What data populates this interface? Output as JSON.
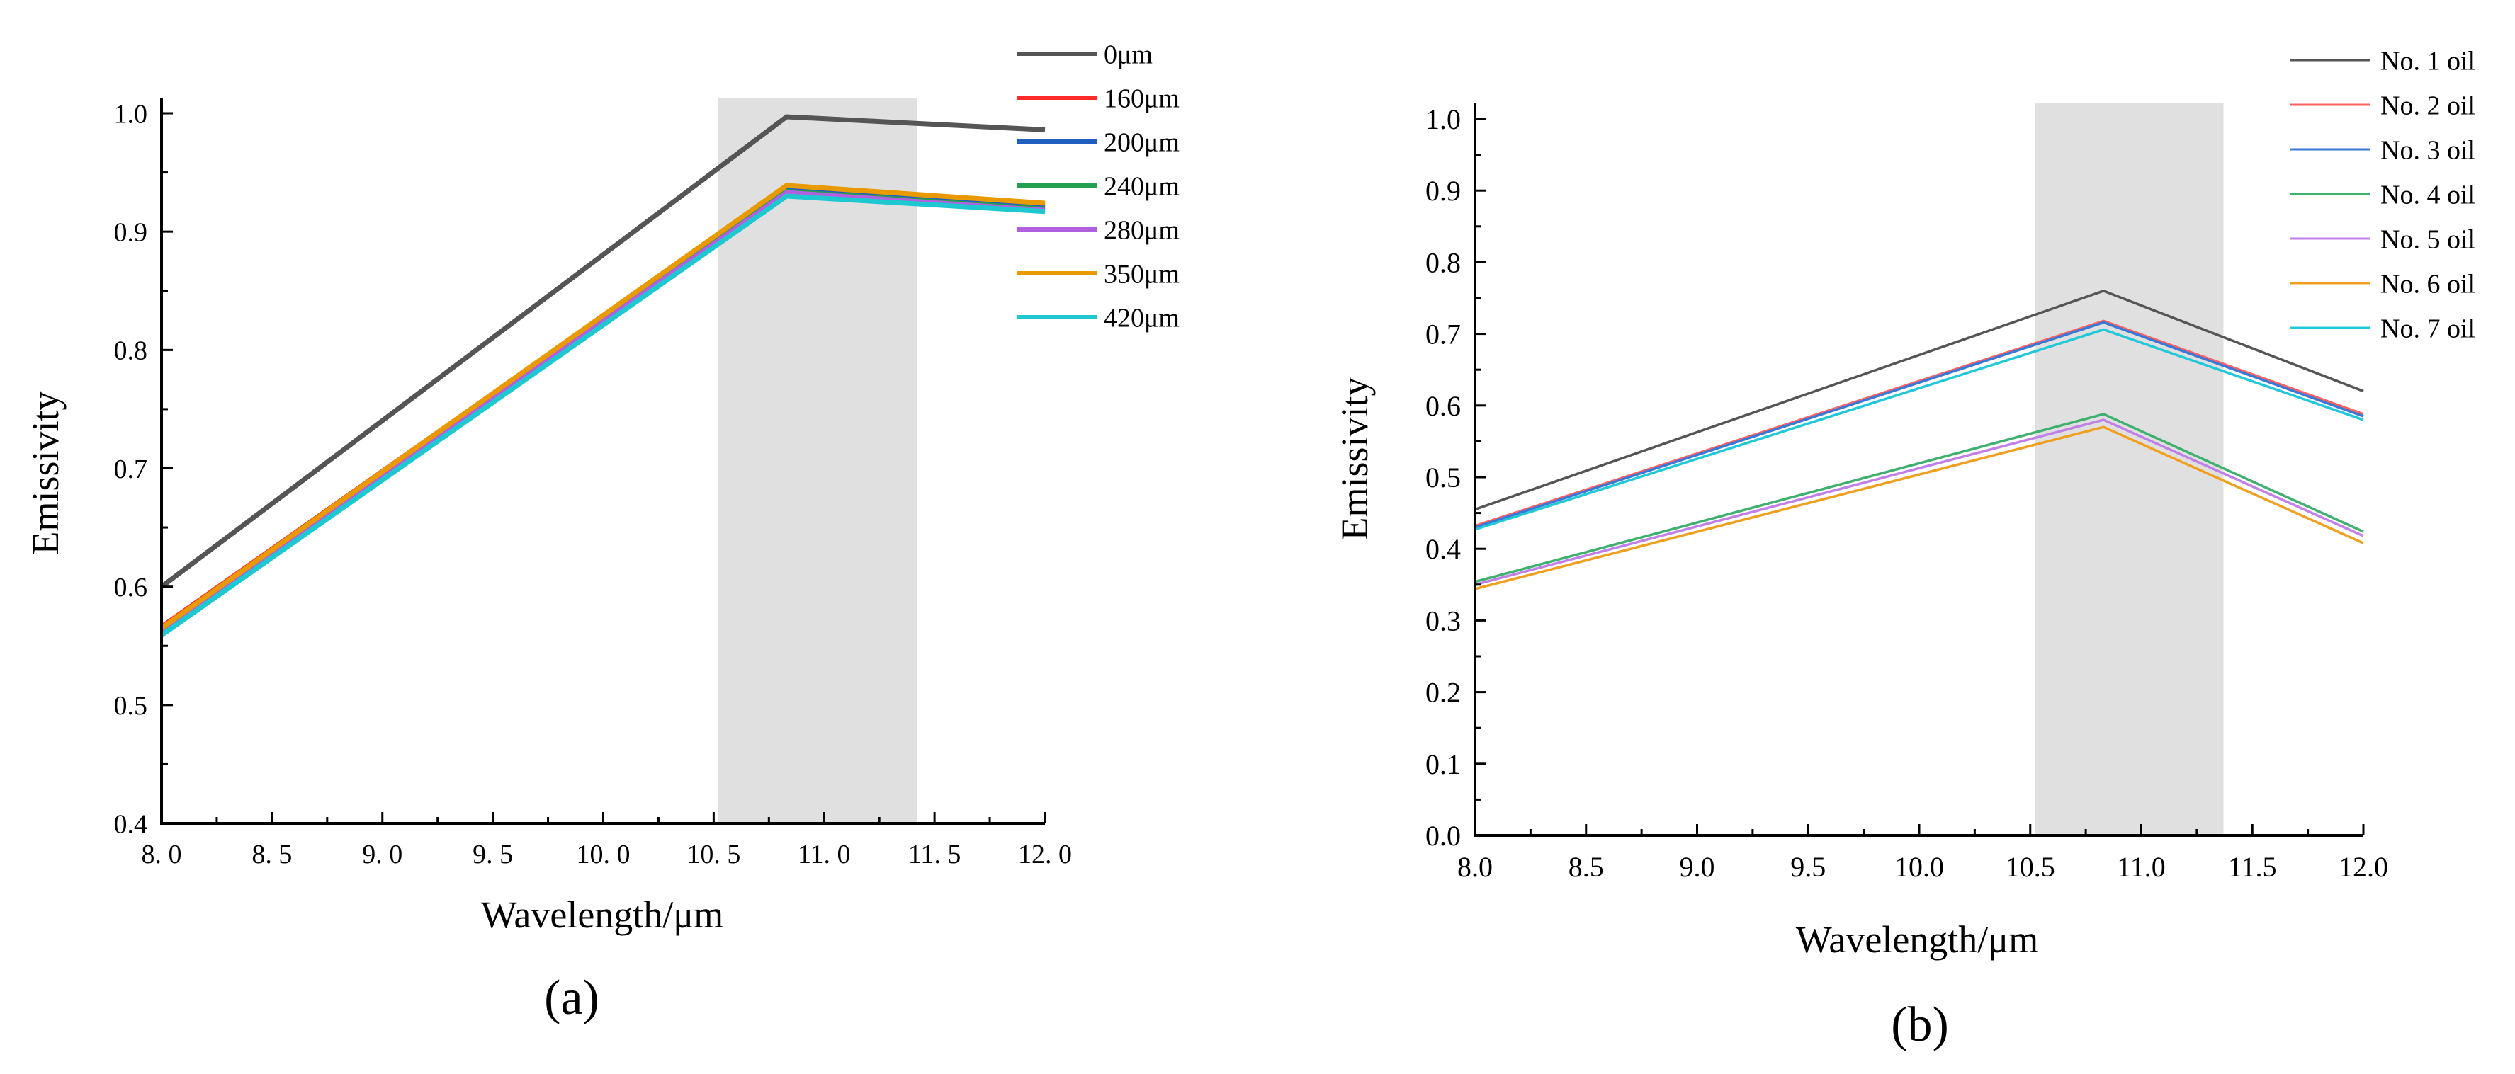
{
  "chart_data": [
    {
      "panel": "a",
      "type": "line",
      "caption": "(a)",
      "xlabel": "Wavelength/μm",
      "ylabel": "Emissivity",
      "xlim": [
        8.0,
        12.0
      ],
      "ylim": [
        0.4,
        1.0
      ],
      "x_ticks": [
        "8. 0",
        "8. 5",
        "9. 0",
        "9. 5",
        "10. 0",
        "10. 5",
        "11. 0",
        "11. 5",
        "12. 0"
      ],
      "x_tick_values": [
        8.0,
        8.5,
        9.0,
        9.5,
        10.0,
        10.5,
        11.0,
        11.5,
        12.0
      ],
      "y_ticks": [
        "0.4",
        "0.5",
        "0.6",
        "0.7",
        "0.8",
        "0.9",
        "1.0"
      ],
      "y_tick_values": [
        0.4,
        0.5,
        0.6,
        0.7,
        0.8,
        0.9,
        1.0
      ],
      "shaded_band": [
        10.52,
        11.42
      ],
      "legend_position": "top-right",
      "x": [
        8.0,
        10.83,
        12.0
      ],
      "series": [
        {
          "name": "0μm",
          "color": "#555555",
          "values": [
            0.6,
            0.997,
            0.986
          ]
        },
        {
          "name": "160μm",
          "color": "#ff2a2a",
          "values": [
            0.566,
            0.938,
            0.922
          ]
        },
        {
          "name": "200μm",
          "color": "#1f5fc0",
          "values": [
            0.564,
            0.936,
            0.92
          ]
        },
        {
          "name": "240μm",
          "color": "#22a050",
          "values": [
            0.563,
            0.934,
            0.919
          ]
        },
        {
          "name": "280μm",
          "color": "#b060e0",
          "values": [
            0.562,
            0.933,
            0.918
          ]
        },
        {
          "name": "350μm",
          "color": "#e89a00",
          "values": [
            0.565,
            0.939,
            0.924
          ]
        },
        {
          "name": "420μm",
          "color": "#1ec8d0",
          "values": [
            0.559,
            0.93,
            0.917
          ]
        }
      ]
    },
    {
      "panel": "b",
      "type": "line",
      "caption": "(b)",
      "xlabel": "Wavelength/μm",
      "ylabel": "Emissivity",
      "xlim": [
        8.0,
        12.0
      ],
      "ylim": [
        0.0,
        1.0
      ],
      "x_ticks": [
        "8.0",
        "8.5",
        "9.0",
        "9.5",
        "10.0",
        "10.5",
        "11.0",
        "11.5",
        "12.0"
      ],
      "x_tick_values": [
        8.0,
        8.5,
        9.0,
        9.5,
        10.0,
        10.5,
        11.0,
        11.5,
        12.0
      ],
      "y_ticks": [
        "0.0",
        "0.1",
        "0.2",
        "0.3",
        "0.4",
        "0.5",
        "0.6",
        "0.7",
        "0.8",
        "0.9",
        "1.0"
      ],
      "y_tick_values": [
        0.0,
        0.1,
        0.2,
        0.3,
        0.4,
        0.5,
        0.6,
        0.7,
        0.8,
        0.9,
        1.0
      ],
      "shaded_band": [
        10.52,
        11.37
      ],
      "legend_position": "top-right",
      "x": [
        8.0,
        10.83,
        12.0
      ],
      "series": [
        {
          "name": "No. 1 oil",
          "color": "#555555",
          "values": [
            0.455,
            0.76,
            0.62
          ]
        },
        {
          "name": "No. 2 oil",
          "color": "#ff6060",
          "values": [
            0.432,
            0.718,
            0.588
          ]
        },
        {
          "name": "No. 3 oil",
          "color": "#3a78d8",
          "values": [
            0.43,
            0.716,
            0.585
          ]
        },
        {
          "name": "No. 4 oil",
          "color": "#40b070",
          "values": [
            0.354,
            0.588,
            0.424
          ]
        },
        {
          "name": "No. 5 oil",
          "color": "#c080e8",
          "values": [
            0.35,
            0.58,
            0.418
          ]
        },
        {
          "name": "No. 6 oil",
          "color": "#f0a020",
          "values": [
            0.344,
            0.57,
            0.408
          ]
        },
        {
          "name": "No. 7 oil",
          "color": "#20c8d8",
          "values": [
            0.427,
            0.706,
            0.58
          ]
        }
      ]
    }
  ]
}
